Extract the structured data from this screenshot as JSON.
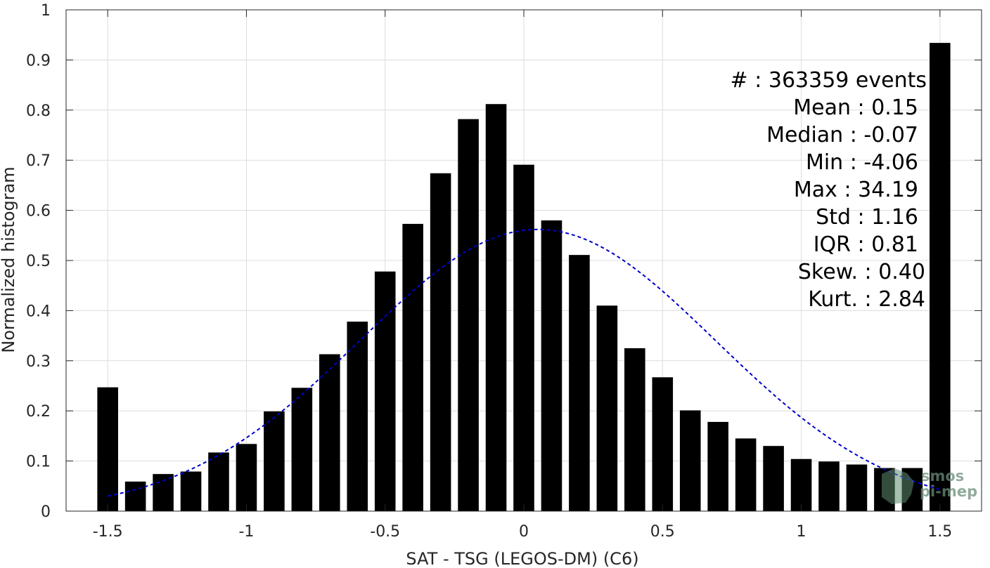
{
  "chart_data": {
    "type": "bar",
    "xlabel": "SAT - TSG (LEGOS-DM) (C6)",
    "ylabel": "Normalized histogram",
    "xlim": [
      -1.65,
      1.65
    ],
    "ylim": [
      0,
      1
    ],
    "grid": true,
    "bar_width": 0.075,
    "bar_color": "#000000",
    "x": [
      -1.5,
      -1.4,
      -1.3,
      -1.2,
      -1.1,
      -1.0,
      -0.9,
      -0.8,
      -0.7,
      -0.6,
      -0.5,
      -0.4,
      -0.3,
      -0.2,
      -0.1,
      0.0,
      0.1,
      0.2,
      0.3,
      0.4,
      0.5,
      0.6,
      0.7,
      0.8,
      0.9,
      1.0,
      1.1,
      1.2,
      1.3,
      1.4,
      1.5
    ],
    "values": [
      0.247,
      0.059,
      0.074,
      0.079,
      0.117,
      0.134,
      0.199,
      0.246,
      0.313,
      0.378,
      0.478,
      0.573,
      0.674,
      0.782,
      0.812,
      0.691,
      0.58,
      0.511,
      0.41,
      0.325,
      0.267,
      0.201,
      0.178,
      0.145,
      0.13,
      0.104,
      0.099,
      0.093,
      0.086,
      0.086,
      0.934
    ],
    "xticks": [
      -1.5,
      -1,
      -0.5,
      0,
      0.5,
      1,
      1.5
    ],
    "xtick_labels": [
      "-1.5",
      "-1",
      "-0.5",
      "0",
      "0.5",
      "1",
      "1.5"
    ],
    "yticks": [
      0,
      0.1,
      0.2,
      0.3,
      0.4,
      0.5,
      0.6,
      0.7,
      0.8,
      0.9,
      1
    ],
    "ytick_labels": [
      "0",
      "0.1",
      "0.2",
      "0.3",
      "0.4",
      "0.5",
      "0.6",
      "0.7",
      "0.8",
      "0.9",
      "1"
    ],
    "fit_curve": {
      "type": "gaussian",
      "style": "dashed",
      "color": "#0000cc",
      "mean": 0.05,
      "std": 0.64,
      "peak": 0.562,
      "x_range": [
        -1.5,
        1.5
      ]
    },
    "annotations": [
      "#  : 363359 events",
      "Mean : 0.15",
      "Median : -0.07",
      "Min : -4.06",
      "Max : 34.19",
      "Std : 1.16",
      "IQR : 0.81",
      "Skew. : 0.40",
      "Kurt. : 2.84"
    ]
  },
  "logo": {
    "line1": "smos",
    "line2": "pi-mep"
  }
}
